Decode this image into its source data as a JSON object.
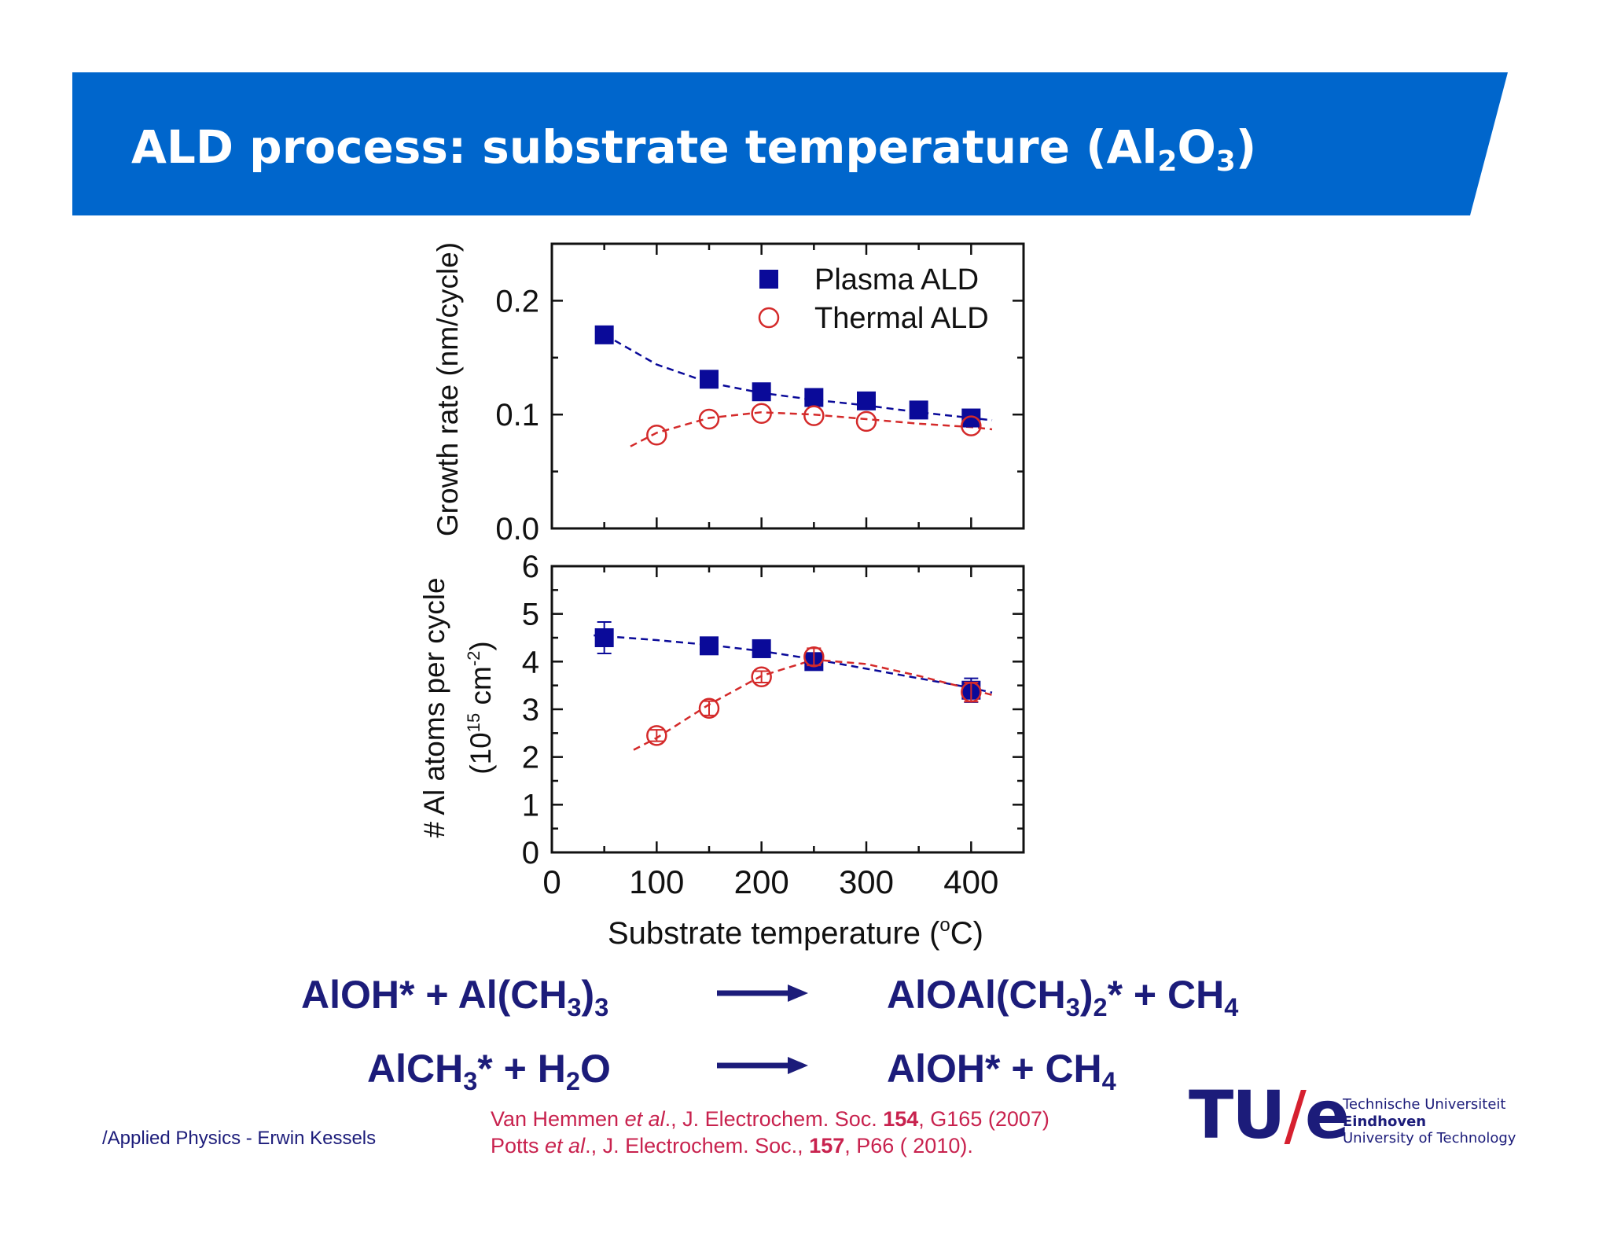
{
  "header": {
    "title_prefix": "ALD process: substrate temperature (Al",
    "title_sub1": "2",
    "title_mid": "O",
    "title_sub2": "3",
    "title_suffix": ")",
    "banner_color": "#0066cc"
  },
  "chart_data": [
    {
      "type": "scatter",
      "panel": "top",
      "ylabel": "Growth rate (nm/cycle)",
      "ylim": [
        0.0,
        0.25
      ],
      "yticks": [
        "0.0",
        "0.1",
        "0.2"
      ],
      "xlim": [
        0,
        450
      ],
      "legend": {
        "placement": "top-right"
      },
      "series": [
        {
          "name": "Plasma ALD",
          "marker": "filled-square",
          "color": "#0a0a99",
          "x": [
            50,
            150,
            200,
            250,
            300,
            350,
            400
          ],
          "y": [
            0.17,
            0.131,
            0.12,
            0.115,
            0.112,
            0.104,
            0.097
          ],
          "fit_x": [
            60,
            100,
            150,
            200,
            250,
            300,
            350,
            400,
            420
          ],
          "fit_y": [
            0.165,
            0.144,
            0.128,
            0.119,
            0.113,
            0.108,
            0.102,
            0.097,
            0.095
          ]
        },
        {
          "name": "Thermal ALD",
          "marker": "open-circle",
          "color": "#d42a2a",
          "x": [
            100,
            150,
            200,
            250,
            300,
            400
          ],
          "y": [
            0.082,
            0.096,
            0.101,
            0.099,
            0.094,
            0.09
          ],
          "fit_x": [
            75,
            100,
            150,
            200,
            250,
            300,
            350,
            400,
            420
          ],
          "fit_y": [
            0.072,
            0.084,
            0.097,
            0.102,
            0.1,
            0.096,
            0.092,
            0.089,
            0.087
          ]
        }
      ]
    },
    {
      "type": "scatter",
      "panel": "bottom",
      "ylabel_line1": "# Al atoms per cycle",
      "ylabel_line2_pre": "(10",
      "ylabel_line2_sup1": "15",
      "ylabel_line2_mid": " cm",
      "ylabel_line2_sup2": "-2",
      "ylabel_line2_post": ")",
      "ylim": [
        0,
        6
      ],
      "yticks": [
        "0",
        "1",
        "2",
        "3",
        "4",
        "5",
        "6"
      ],
      "xlim": [
        0,
        450
      ],
      "xticks": [
        "0",
        "100",
        "200",
        "300",
        "400"
      ],
      "xlabel_pre": "Substrate temperature (",
      "xlabel_sup": "o",
      "xlabel_post": "C)",
      "series": [
        {
          "name": "Plasma ALD",
          "marker": "filled-square",
          "color": "#0a0a99",
          "x": [
            50,
            150,
            200,
            250,
            400
          ],
          "y": [
            4.5,
            4.33,
            4.27,
            4.0,
            3.4
          ],
          "err": [
            0.33,
            0.1,
            0.12,
            0.1,
            0.25
          ],
          "fit_x": [
            40,
            100,
            150,
            200,
            250,
            300,
            350,
            400,
            420
          ],
          "fit_y": [
            4.55,
            4.45,
            4.35,
            4.22,
            4.05,
            3.85,
            3.65,
            3.45,
            3.35
          ]
        },
        {
          "name": "Thermal ALD",
          "marker": "open-circle",
          "color": "#d42a2a",
          "x": [
            100,
            150,
            200,
            250,
            400
          ],
          "y": [
            2.45,
            3.02,
            3.68,
            4.1,
            3.36
          ],
          "err": [
            0.12,
            0.15,
            0.12,
            0.18,
            0.2
          ],
          "fit_x": [
            78,
            100,
            150,
            200,
            250,
            300,
            350,
            400,
            420
          ],
          "fit_y": [
            2.15,
            2.4,
            3.1,
            3.7,
            4.04,
            3.95,
            3.7,
            3.42,
            3.3
          ]
        }
      ]
    }
  ],
  "equations": {
    "eq1_left": [
      "AlOH* + Al(CH",
      "3",
      ")",
      "3",
      ""
    ],
    "eq1_right": [
      "AlOAl(CH",
      "3",
      ")",
      "2",
      "* + CH",
      "4",
      ""
    ],
    "eq2_left": [
      "AlCH",
      "3",
      "* + H",
      "2",
      "O"
    ],
    "eq2_right": [
      "AlOH* +  CH",
      "4",
      ""
    ]
  },
  "footer": {
    "author": "/Applied Physics - Erwin Kessels",
    "ref1_author": "Van Hemmen ",
    "ref1_etal": "et al",
    "ref1_journal": "., J. Electrochem. Soc. ",
    "ref1_volume": "154",
    "ref1_rest": ", G165 (2007)",
    "ref2_author": "Potts ",
    "ref2_etal": "et al",
    "ref2_journal": "., J. Electrochem. Soc., ",
    "ref2_volume": "157",
    "ref2_rest": ", P66 ( 2010)."
  },
  "logo": {
    "mark_tu": "TU",
    "mark_slash": "/",
    "mark_e": "e",
    "line1": "Technische Universiteit",
    "line2": "Eindhoven",
    "line3": "University of Technology",
    "slash_color": "#d6202f"
  }
}
